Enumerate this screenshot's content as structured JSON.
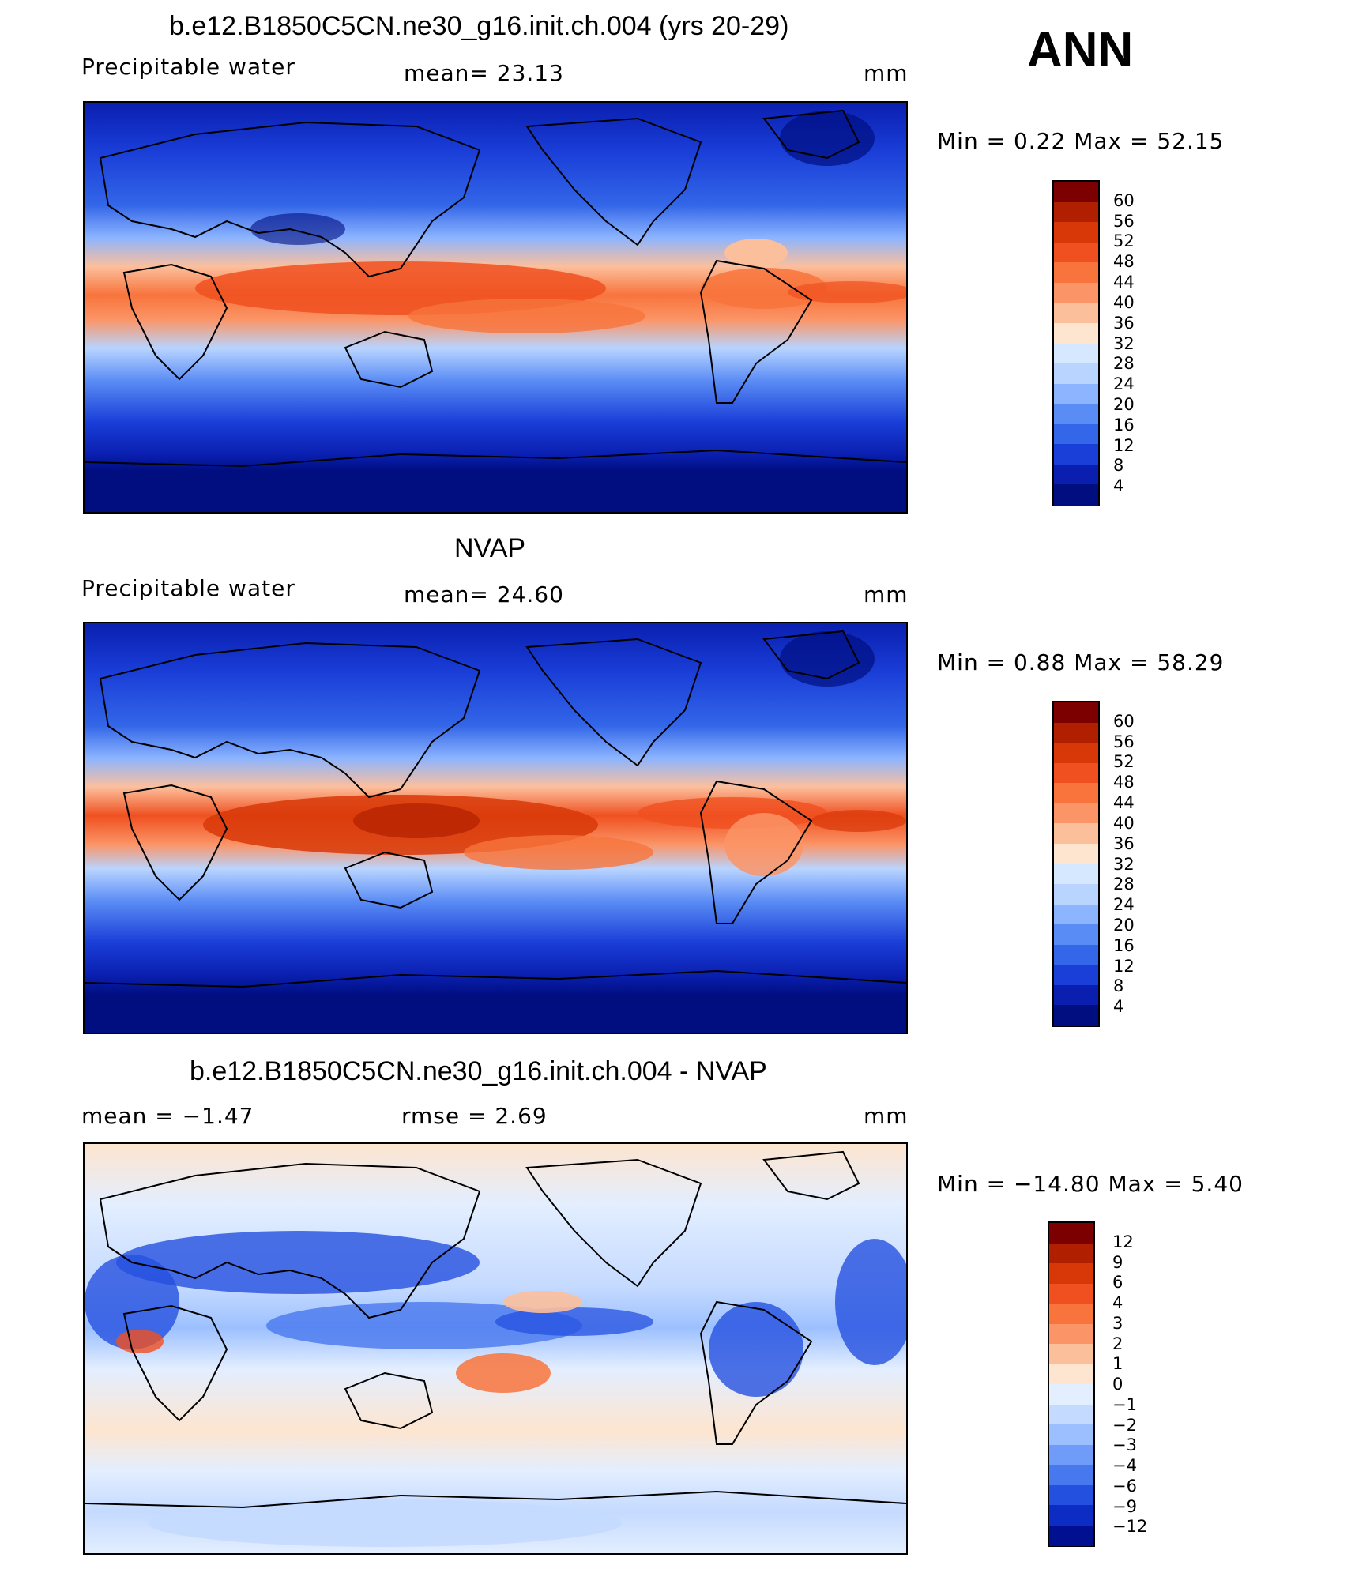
{
  "header": {
    "season": "ANN"
  },
  "panels": [
    {
      "title": "b.e12.B1850C5CN.ne30_g16.init.ch.004 (yrs 20-29)",
      "left_label": "Precipitable  water",
      "center_label": "mean=   23.13",
      "units": "mm",
      "minmax": "Min  =     0.22  Max  =    52.15",
      "colorbar_labels": [
        "60",
        "56",
        "52",
        "48",
        "44",
        "40",
        "36",
        "32",
        "28",
        "24",
        "20",
        "16",
        "12",
        "8",
        "4"
      ]
    },
    {
      "title": "NVAP",
      "left_label": "Precipitable  water",
      "center_label": "mean=   24.60",
      "units": "mm",
      "minmax": "Min  =     0.88  Max  =    58.29",
      "colorbar_labels": [
        "60",
        "56",
        "52",
        "48",
        "44",
        "40",
        "36",
        "32",
        "28",
        "24",
        "20",
        "16",
        "12",
        "8",
        "4"
      ]
    },
    {
      "title": "b.e12.B1850C5CN.ne30_g16.init.ch.004 - NVAP",
      "left_label": "mean  =    −1.47",
      "center_label": "rmse  =     2.69",
      "units": "mm",
      "minmax": "Min  =  −14.80  Max  =      5.40",
      "colorbar_labels": [
        "12",
        "9",
        "6",
        "4",
        "3",
        "2",
        "1",
        "0",
        "−1",
        "−2",
        "−3",
        "−4",
        "−6",
        "−9",
        "−12"
      ]
    }
  ],
  "colors": {
    "abs_scale": [
      "#7d0000",
      "#b02000",
      "#d83808",
      "#f05020",
      "#f8743c",
      "#fb9466",
      "#fcbf9c",
      "#fde5d0",
      "#d6e8ff",
      "#b8d4ff",
      "#8cb4ff",
      "#5a8cf5",
      "#3366e8",
      "#1a3ed8",
      "#0a1fb0",
      "#000e80"
    ],
    "diff_scale": [
      "#7d0000",
      "#b02000",
      "#d83808",
      "#f05020",
      "#f8743c",
      "#fb9466",
      "#fcbf9c",
      "#fde5d0",
      "#e3eeff",
      "#c4daff",
      "#9cc0ff",
      "#6e9cf8",
      "#4878ee",
      "#2450e0",
      "#0c2cc4",
      "#001090"
    ]
  }
}
